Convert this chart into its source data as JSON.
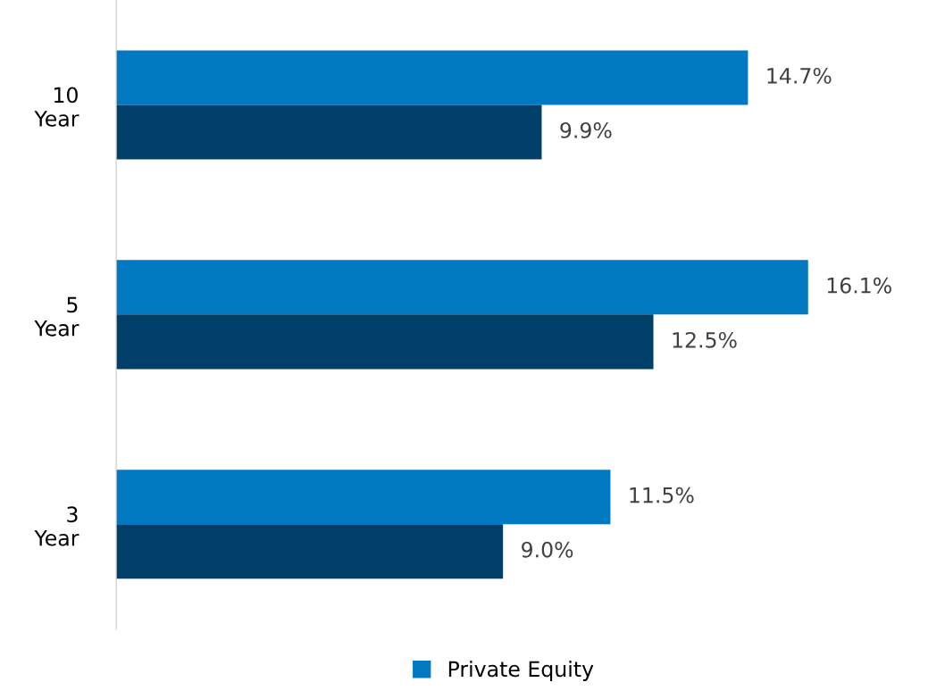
{
  "chart_data": {
    "type": "bar",
    "orientation": "horizontal",
    "categories": [
      "10\nYear",
      "5\nYear",
      "3\nYear"
    ],
    "series": [
      {
        "name": "Private Equity",
        "color": "#0079c2",
        "values": [
          14.7,
          16.1,
          11.5
        ],
        "value_labels": [
          "14.7%",
          "16.1%",
          "11.5%"
        ]
      },
      {
        "color": "#003f6a",
        "values": [
          9.9,
          12.5,
          9.0
        ],
        "value_labels": [
          "9.9%",
          "12.5%",
          "9.0%"
        ]
      }
    ],
    "legend": "bottom",
    "grid": false,
    "tick_labels": "y"
  }
}
